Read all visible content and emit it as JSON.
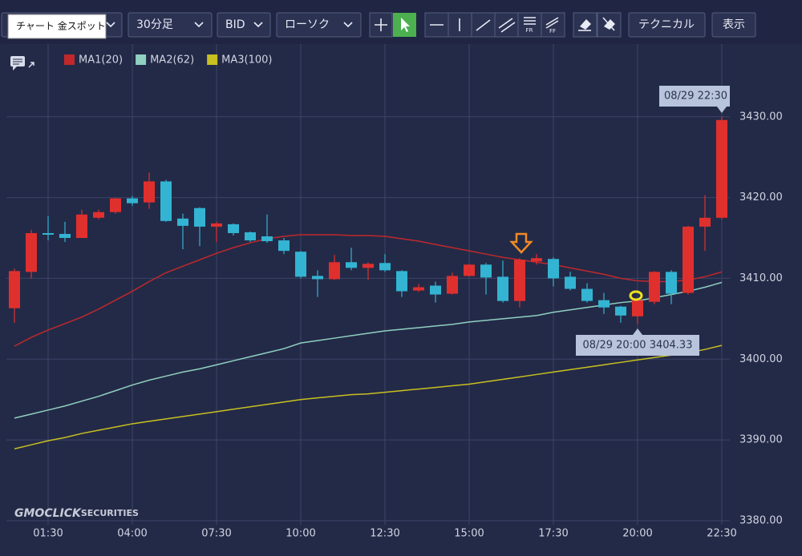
{
  "toolbar": {
    "tooltip": "チャート 金スポット",
    "timeframe": "30分足",
    "side": "BID",
    "chart_style": "ローソク",
    "fr": "FR",
    "ff": "FF",
    "technical": "テクニカル",
    "display": "表示"
  },
  "chart_data": {
    "type": "candlestick",
    "categories": [
      null,
      null,
      "01:30",
      null,
      null,
      null,
      null,
      "04:00",
      null,
      null,
      null,
      null,
      "07:30",
      null,
      null,
      null,
      null,
      "10:00",
      null,
      null,
      null,
      null,
      "12:30",
      null,
      null,
      null,
      null,
      "15:00",
      null,
      null,
      null,
      null,
      "17:30",
      null,
      null,
      null,
      null,
      "20:00",
      null,
      null,
      null,
      null,
      "22:30"
    ],
    "open": [
      3406.3,
      3410.8,
      3415.6,
      3415.5,
      3415.0,
      3417.5,
      3418.2,
      3419.9,
      3419.4,
      3422.0,
      3417.4,
      3418.7,
      3416.4,
      3416.7,
      3415.7,
      3415.2,
      3414.7,
      3413.3,
      3410.3,
      3409.9,
      3412.0,
      3411.3,
      3411.9,
      3410.9,
      3408.5,
      3409.1,
      3408.1,
      3410.3,
      3411.7,
      3410.2,
      3407.2,
      3412.1,
      3412.4,
      3410.2,
      3408.7,
      3407.3,
      3406.5,
      3405.3,
      3407.1,
      3410.8,
      3408.2,
      3416.4,
      3417.5
    ],
    "high": [
      3411.2,
      3416.0,
      3417.7,
      3417.0,
      3418.5,
      3418.5,
      3420.0,
      3420.2,
      3423.1,
      3422.2,
      3418.0,
      3418.8,
      3417.0,
      3416.8,
      3415.8,
      3417.9,
      3415.0,
      3413.4,
      3411.0,
      3412.9,
      3413.8,
      3412.0,
      3413.0,
      3411.0,
      3409.3,
      3409.6,
      3410.7,
      3411.8,
      3411.9,
      3412.2,
      3412.5,
      3413.0,
      3412.6,
      3410.8,
      3409.4,
      3408.2,
      3406.6,
      3407.5,
      3410.9,
      3411.0,
      3416.5,
      3420.3,
      3430.0
    ],
    "low": [
      3404.5,
      3410.0,
      3414.7,
      3414.5,
      3415.0,
      3417.3,
      3418.0,
      3419.0,
      3418.6,
      3417.0,
      3413.6,
      3414.0,
      3414.5,
      3415.3,
      3414.5,
      3414.4,
      3413.0,
      3410.0,
      3407.7,
      3409.8,
      3411.0,
      3409.8,
      3410.8,
      3407.7,
      3408.3,
      3407.0,
      3408.0,
      3410.2,
      3408.0,
      3407.0,
      3406.4,
      3411.7,
      3409.0,
      3408.5,
      3407.0,
      3405.6,
      3404.5,
      3404.33,
      3406.8,
      3406.8,
      3408.0,
      3413.4,
      3417.3
    ],
    "close": [
      3410.9,
      3415.6,
      3415.4,
      3415.0,
      3417.9,
      3418.2,
      3419.9,
      3419.3,
      3422.0,
      3417.1,
      3416.5,
      3416.4,
      3416.8,
      3415.6,
      3414.7,
      3414.6,
      3413.4,
      3410.2,
      3409.9,
      3412.0,
      3411.3,
      3411.8,
      3411.0,
      3408.4,
      3408.9,
      3408.0,
      3410.3,
      3411.7,
      3410.1,
      3407.2,
      3412.3,
      3412.5,
      3410.0,
      3408.7,
      3407.2,
      3406.4,
      3405.4,
      3407.3,
      3410.8,
      3408.1,
      3416.4,
      3417.5,
      3429.6
    ],
    "up_color": "#e0302e",
    "down_color": "#33b4d2",
    "series": [
      {
        "name": "MA1(20)",
        "color": "#c0282c",
        "values": [
          3401.6,
          3402.7,
          3403.6,
          3404.4,
          3405.2,
          3406.2,
          3407.3,
          3408.4,
          3409.6,
          3410.7,
          3411.5,
          3412.3,
          3413.1,
          3413.8,
          3414.4,
          3414.9,
          3415.2,
          3415.4,
          3415.4,
          3415.4,
          3415.3,
          3415.3,
          3415.2,
          3414.9,
          3414.6,
          3414.2,
          3413.8,
          3413.4,
          3413.0,
          3412.6,
          3412.3,
          3412.0,
          3411.7,
          3411.3,
          3410.9,
          3410.5,
          3410.0,
          3409.7,
          3409.6,
          3409.6,
          3409.8,
          3410.2,
          3410.8
        ]
      },
      {
        "name": "MA2(62)",
        "color": "#8fd0c0",
        "values": [
          3392.7,
          3393.2,
          3393.7,
          3394.2,
          3394.8,
          3395.4,
          3396.1,
          3396.8,
          3397.4,
          3397.9,
          3398.4,
          3398.8,
          3399.3,
          3399.8,
          3400.3,
          3400.8,
          3401.3,
          3402.0,
          3402.3,
          3402.6,
          3402.9,
          3403.2,
          3403.5,
          3403.7,
          3403.9,
          3404.1,
          3404.3,
          3404.6,
          3404.8,
          3405.0,
          3405.2,
          3405.4,
          3405.8,
          3406.1,
          3406.4,
          3406.7,
          3407.0,
          3407.2,
          3407.6,
          3408.0,
          3408.4,
          3408.9,
          3409.5
        ]
      },
      {
        "name": "MA3(100)",
        "color": "#c8c020",
        "values": [
          3388.9,
          3389.4,
          3389.9,
          3390.3,
          3390.8,
          3391.2,
          3391.6,
          3392.0,
          3392.3,
          3392.6,
          3392.9,
          3393.2,
          3393.5,
          3393.8,
          3394.1,
          3394.4,
          3394.7,
          3395.0,
          3395.2,
          3395.4,
          3395.6,
          3395.7,
          3395.9,
          3396.1,
          3396.3,
          3396.5,
          3396.7,
          3396.9,
          3397.2,
          3397.5,
          3397.8,
          3398.1,
          3398.4,
          3398.7,
          3399.0,
          3399.3,
          3399.6,
          3399.9,
          3400.2,
          3400.5,
          3400.8,
          3401.2,
          3401.7
        ]
      }
    ],
    "ylim": [
      3379.5,
      3439
    ],
    "yticks": [
      {
        "value": 3380,
        "label": "3380.00"
      },
      {
        "value": 3390,
        "label": "3390.00"
      },
      {
        "value": 3400,
        "label": "3400.00"
      },
      {
        "value": 3410,
        "label": "3410.00"
      },
      {
        "value": 3420,
        "label": "3420.00"
      },
      {
        "value": 3430,
        "label": "3430.00"
      }
    ],
    "grid": true,
    "annotations": [
      {
        "text": "08/29 20:00 3404.33"
      },
      {
        "text": "08/29 22:30"
      }
    ],
    "watermark": {
      "brand": "GMOCLICK",
      "suffix": "SECURITIES"
    }
  }
}
